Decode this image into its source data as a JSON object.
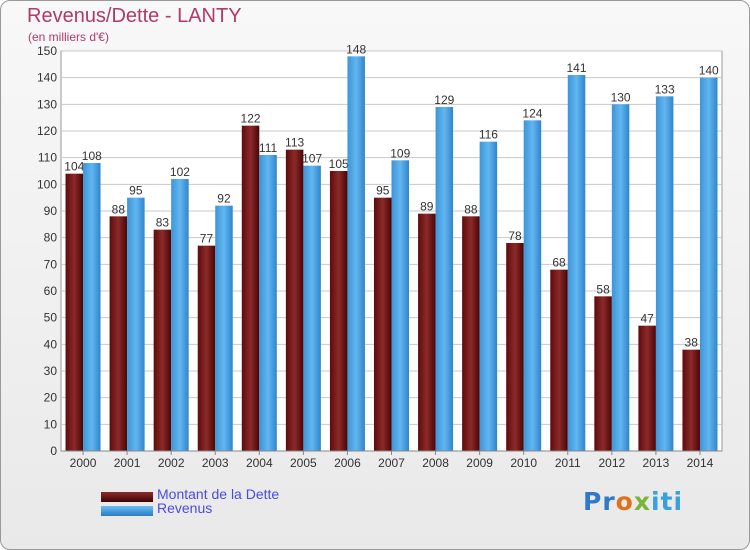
{
  "chart_data": {
    "type": "bar",
    "title": "Revenus/Dette - LANTY",
    "subtitle": "(en milliers d'€)",
    "categories": [
      "2000",
      "2001",
      "2002",
      "2003",
      "2004",
      "2005",
      "2006",
      "2007",
      "2008",
      "2009",
      "2010",
      "2011",
      "2012",
      "2013",
      "2014"
    ],
    "series": [
      {
        "name": "Montant de la Dette",
        "color": "#7a1c1c",
        "values": [
          104,
          88,
          83,
          77,
          122,
          113,
          105,
          95,
          89,
          88,
          78,
          68,
          58,
          47,
          38
        ]
      },
      {
        "name": "Revenus",
        "color": "#4aa3e6",
        "values": [
          108,
          95,
          102,
          92,
          111,
          107,
          148,
          109,
          129,
          116,
          124,
          141,
          130,
          133,
          140
        ]
      }
    ],
    "ylim": [
      0,
      150
    ],
    "yticks": [
      0,
      10,
      20,
      30,
      40,
      50,
      60,
      70,
      80,
      90,
      100,
      110,
      120,
      130,
      140,
      150
    ],
    "grid": true,
    "legend_position": "bottom-left",
    "xlabel": "",
    "ylabel": ""
  },
  "brand": {
    "logo_text": "Proxiti"
  }
}
